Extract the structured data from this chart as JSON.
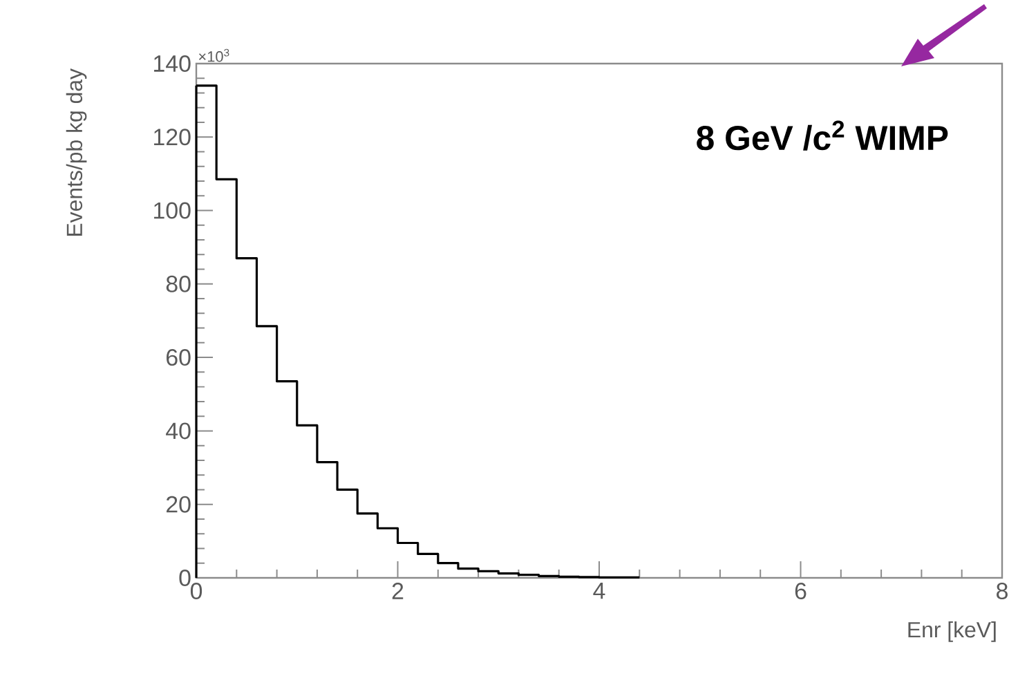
{
  "chart_data": {
    "type": "histogram",
    "xlabel": "Enr [keV]",
    "ylabel": "Events/pb kg day",
    "annotations": [
      "8 GeV /c$^{2}$ WIMP",
      "×10$^{3}$"
    ],
    "bins": [
      0,
      0.2,
      0.4,
      0.6,
      0.8,
      1.0,
      1.2,
      1.4,
      1.6,
      1.8,
      2.0,
      2.2,
      2.4,
      2.6,
      2.8,
      3.0,
      3.2,
      3.4,
      3.6,
      3.8,
      4.0,
      4.2,
      4.4
    ],
    "values": [
      134,
      108.5,
      87,
      68.5,
      53.5,
      41.5,
      31.5,
      24,
      17.5,
      13.5,
      9.5,
      6.5,
      4,
      2.5,
      1.8,
      1.2,
      0.8,
      0.5,
      0.3,
      0.2,
      0.1,
      0.1
    ],
    "color": "#000000",
    "xlim": [
      0,
      8
    ],
    "ylim": [
      0,
      140
    ],
    "xticks": [
      0,
      2,
      4,
      6,
      8
    ],
    "yticks": [
      0,
      20,
      40,
      60,
      80,
      100,
      120,
      140
    ]
  }
}
